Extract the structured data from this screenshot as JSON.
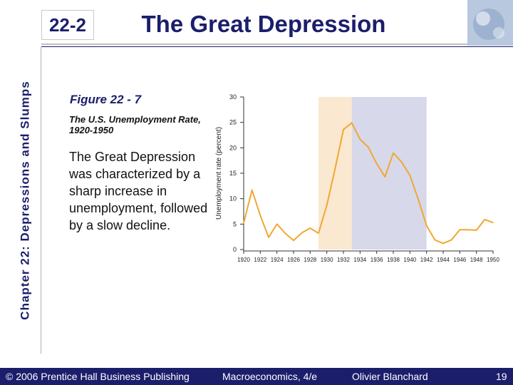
{
  "slide": {
    "section": "22-2",
    "title": "The Great Depression",
    "side_label": "Chapter 22: Depressions and Slumps",
    "figure_label": "Figure 22 - 7",
    "figure_caption": "The U.S. Unemployment Rate, 1920-1950",
    "body_text": "The Great Depression was characterized by a sharp increase in unemployment, followed by a slow decline."
  },
  "footer": {
    "copyright": "© 2006 Prentice Hall Business Publishing",
    "book": "Macroeconomics, 4/e",
    "author": "Olivier Blanchard",
    "page": "19"
  },
  "colors": {
    "navy": "#1b1e6b",
    "line": "#f0a830",
    "shade_1929_1933": "#fbe8d0",
    "shade_1933_1942": "#d7d8ea"
  },
  "chart_data": {
    "type": "line",
    "title": "",
    "xlabel": "",
    "ylabel": "Unemployment rate (percent)",
    "xlim": [
      1920,
      1950
    ],
    "ylim": [
      0,
      30
    ],
    "yticks": [
      0,
      5,
      10,
      15,
      20,
      25,
      30
    ],
    "xticks": [
      1920,
      1922,
      1924,
      1926,
      1928,
      1930,
      1932,
      1934,
      1936,
      1938,
      1940,
      1942,
      1944,
      1946,
      1948,
      1950
    ],
    "grid": false,
    "shaded_periods": [
      {
        "from": 1929,
        "to": 1933
      },
      {
        "from": 1933,
        "to": 1942
      }
    ],
    "series": [
      {
        "x": [
          1920,
          1921,
          1922,
          1923,
          1924,
          1925,
          1926,
          1927,
          1928,
          1929,
          1930,
          1931,
          1932,
          1933,
          1934,
          1935,
          1936,
          1937,
          1938,
          1939,
          1940,
          1941,
          1942,
          1943,
          1944,
          1945,
          1946,
          1947,
          1948,
          1949,
          1950
        ],
        "values": [
          5.2,
          11.7,
          6.7,
          2.4,
          5.0,
          3.2,
          1.8,
          3.3,
          4.2,
          3.2,
          8.7,
          15.9,
          23.6,
          24.9,
          21.7,
          20.1,
          16.9,
          14.3,
          19.0,
          17.2,
          14.6,
          9.9,
          4.7,
          1.9,
          1.2,
          1.9,
          3.9,
          3.9,
          3.8,
          5.9,
          5.3
        ]
      }
    ]
  }
}
